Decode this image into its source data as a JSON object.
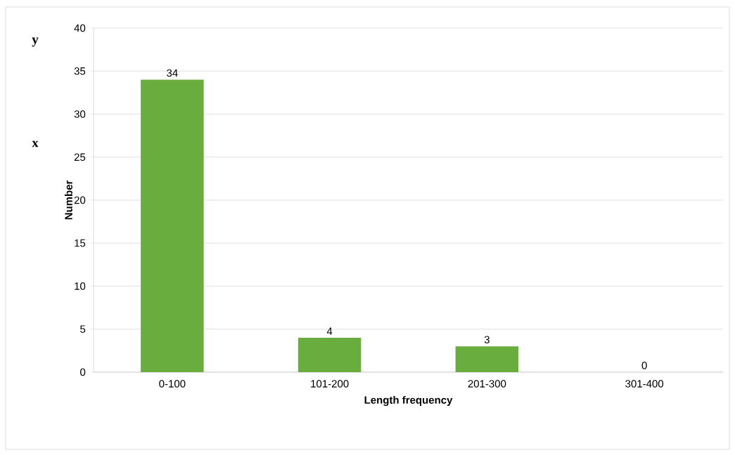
{
  "chart_data": {
    "type": "bar",
    "xlabel": "Length frequency",
    "ylabel": "Number",
    "categories": [
      "0-100",
      "101-200",
      "201-300",
      "301-400"
    ],
    "values": [
      34,
      4,
      3,
      0
    ],
    "color": "#6aad3f",
    "ylim": [
      0,
      40
    ],
    "yticks": [
      0,
      5,
      10,
      15,
      20,
      25,
      30,
      35,
      40
    ],
    "grid": "y",
    "data_labels": true,
    "annotations": [
      "y",
      "x"
    ]
  }
}
